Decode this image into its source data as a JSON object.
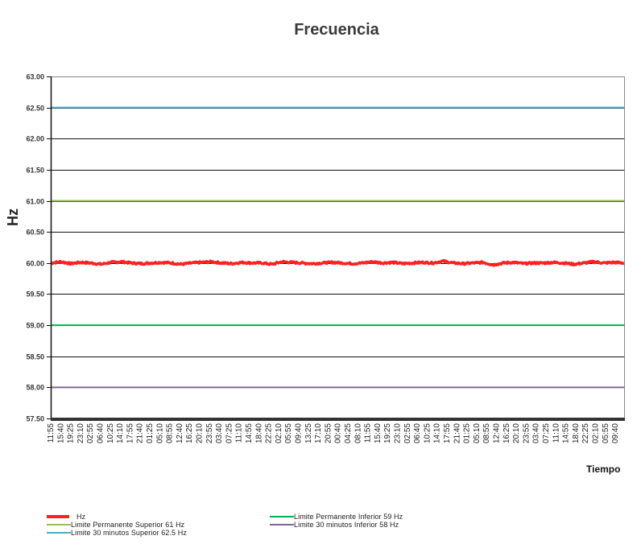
{
  "chart_data": {
    "type": "line",
    "title": "Frecuencia",
    "xlabel": "Tiempo",
    "ylabel": "Hz",
    "ylim": [
      57.5,
      63.0
    ],
    "yticks": [
      "63.00",
      "62.50",
      "62.00",
      "61.50",
      "61.00",
      "60.50",
      "60.00",
      "59.50",
      "59.00",
      "58.50",
      "58.00",
      "57.50"
    ],
    "grid": true,
    "legend_position": "bottom",
    "categories": [
      "11:55",
      "15:40",
      "19:25",
      "23:10",
      "02:55",
      "06:40",
      "10:25",
      "14:10",
      "17:55",
      "21:40",
      "01:25",
      "05:10",
      "08:55",
      "12:40",
      "16:25",
      "20:10",
      "23:55",
      "03:40",
      "07:25",
      "11:10",
      "14:55",
      "18:40",
      "22:25",
      "02:10",
      "05:55",
      "09:40",
      "13:25",
      "17:10",
      "20:55",
      "00:40",
      "04:25",
      "08:10",
      "11:55",
      "15:40",
      "19:25",
      "23:10",
      "02:55",
      "06:40",
      "10:25",
      "14:10",
      "17:55",
      "21:40",
      "01:25",
      "05:10",
      "08:55",
      "12:40",
      "16:25",
      "20:10",
      "23:55",
      "03:40",
      "07:25",
      "11:10",
      "14:55",
      "18:40",
      "22:25",
      "02:10",
      "05:55",
      "09:40"
    ],
    "series": [
      {
        "name": "Hz",
        "color": "#ff2020",
        "values": [
          60.0,
          60.02,
          59.99,
          60.01,
          60.0,
          59.98,
          60.01,
          60.02,
          60.0,
          59.99,
          60.0,
          60.01,
          60.0,
          59.98,
          60.0,
          60.01,
          60.02,
          60.0,
          59.99,
          60.01,
          60.0,
          60.0,
          59.98,
          60.02,
          60.01,
          60.0,
          59.99,
          60.0,
          60.01,
          60.0,
          59.99,
          60.0,
          60.02,
          60.0,
          60.01,
          59.99,
          60.0,
          60.01,
          60.0,
          60.03,
          60.0,
          59.99,
          60.0,
          60.01,
          59.97,
          60.0,
          60.01,
          59.99,
          60.0,
          60.0,
          60.01,
          60.0,
          59.98,
          60.0,
          60.02,
          60.0,
          60.01,
          60.0
        ]
      },
      {
        "name": "Limite Permanente Superior 61 Hz",
        "color": "#9bbb59",
        "constant": 61.0
      },
      {
        "name": "Limite 30 minutos Superior 62.5 Hz",
        "color": "#4bacc6",
        "constant": 62.5
      },
      {
        "name": "Limite Permanente Inferior 59 Hz",
        "color": "#00b050",
        "constant": 59.0
      },
      {
        "name": "Limite 30 minutos Inferior 58 Hz",
        "color": "#8064a2",
        "constant": 58.0
      }
    ]
  },
  "legend": {
    "items": [
      {
        "label": "Hz",
        "color": "#ff2020"
      },
      {
        "label": "Limite Permanente Superior 61 Hz",
        "color": "#9bbb59"
      },
      {
        "label": "Limite 30 minutos Superior 62.5 Hz",
        "color": "#4bacc6"
      },
      {
        "label": "Limite Permanente Inferior 59 Hz",
        "color": "#00b050"
      },
      {
        "label": "Limite 30 minutos Inferior 58 Hz",
        "color": "#8064a2"
      }
    ]
  }
}
